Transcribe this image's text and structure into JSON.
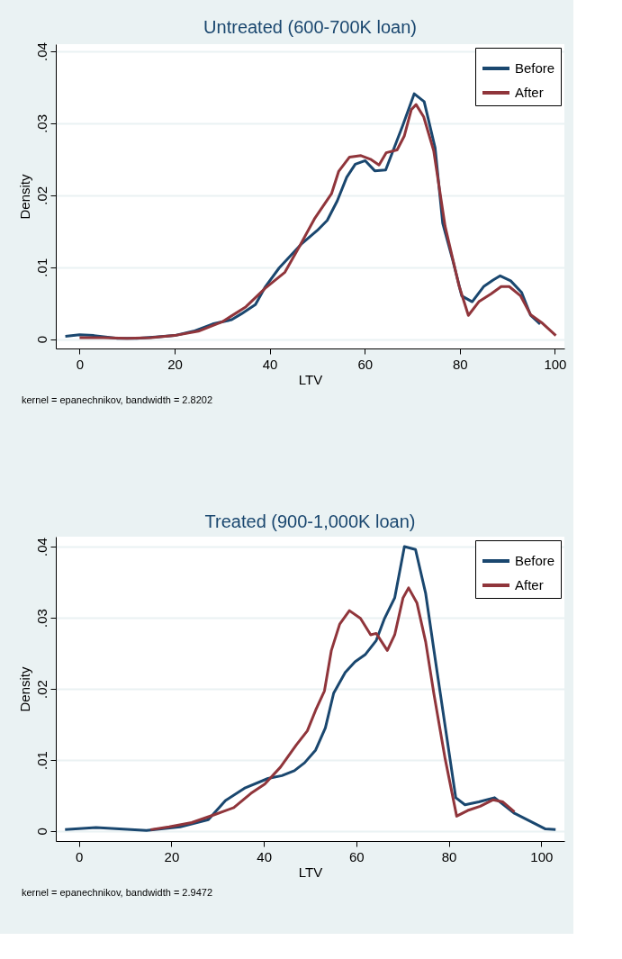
{
  "chart_data": [
    {
      "type": "line",
      "title": "Untreated (600-700K loan)",
      "xlabel": "LTV",
      "ylabel": "Density",
      "xlim": [
        -5,
        102
      ],
      "xticks": [
        0,
        20,
        40,
        60,
        80,
        100
      ],
      "ylim": [
        -0.0013,
        0.041
      ],
      "yticks": [
        {
          "value": 0,
          "label": "0"
        },
        {
          "value": 0.01,
          "label": ".01"
        },
        {
          "value": 0.02,
          "label": ".02"
        },
        {
          "value": 0.03,
          "label": ".03"
        },
        {
          "value": 0.04,
          "label": ".04"
        }
      ],
      "grid": "y",
      "legend": "top right",
      "marker": "none",
      "line_style": "solid",
      "annotations": [
        "kernel = epanechnikov, bandwidth = 2.8202"
      ],
      "series": [
        {
          "name": "Before",
          "color": "#1a476f",
          "x": [
            -3,
            0,
            3,
            8,
            12,
            16,
            20,
            24,
            28,
            32,
            34,
            37,
            39.1,
            42,
            46.8,
            50,
            52.1,
            54.2,
            56.2,
            58,
            60.1,
            62.1,
            64.4,
            68,
            70.4,
            72.5,
            74.8,
            76.4,
            78.5,
            80.4,
            82.6,
            85,
            87,
            88.5,
            90.7,
            93,
            94.9,
            96.9
          ],
          "values": [
            0.0004,
            0.0006,
            0.0005,
            0.0001,
            0.0001,
            0.0003,
            0.0005,
            0.0011,
            0.0021,
            0.0027,
            0.0035,
            0.0048,
            0.0073,
            0.0099,
            0.0133,
            0.0151,
            0.0165,
            0.0192,
            0.0225,
            0.0243,
            0.0248,
            0.0234,
            0.0235,
            0.0297,
            0.0341,
            0.033,
            0.0266,
            0.0161,
            0.011,
            0.006,
            0.0052,
            0.0073,
            0.0082,
            0.0088,
            0.0081,
            0.0065,
            0.0033,
            0.0021
          ]
        },
        {
          "name": "After",
          "color": "#90353b",
          "x": [
            0,
            5,
            10,
            15,
            20,
            25,
            30,
            35,
            39.1,
            43.2,
            46.2,
            49.4,
            53,
            54.5,
            56.8,
            59.2,
            61.2,
            63,
            64.5,
            66.8,
            68.3,
            69.8,
            70.8,
            72.4,
            74.5,
            76.9,
            79.8,
            81.8,
            84,
            86.6,
            88.7,
            90.4,
            92.8,
            94.9,
            97.2,
            100.2
          ],
          "values": [
            0.0002,
            0.0002,
            0.0001,
            0.0002,
            0.0005,
            0.0011,
            0.0024,
            0.0045,
            0.0071,
            0.0093,
            0.0128,
            0.0167,
            0.0202,
            0.0233,
            0.0253,
            0.0255,
            0.025,
            0.0242,
            0.0259,
            0.0263,
            0.0282,
            0.0319,
            0.0326,
            0.0309,
            0.0262,
            0.0157,
            0.0075,
            0.0033,
            0.0052,
            0.0063,
            0.0073,
            0.0073,
            0.006,
            0.0034,
            0.0023,
            0.0005
          ]
        }
      ]
    },
    {
      "type": "line",
      "title": "Treated (900-1,000K loan)",
      "xlabel": "LTV",
      "ylabel": "Density",
      "xlim": [
        -5,
        105
      ],
      "xticks": [
        0,
        20,
        40,
        60,
        80,
        100
      ],
      "ylim": [
        -0.0014,
        0.0414
      ],
      "yticks": [
        {
          "value": 0,
          "label": "0"
        },
        {
          "value": 0.01,
          "label": ".01"
        },
        {
          "value": 0.02,
          "label": ".02"
        },
        {
          "value": 0.03,
          "label": ".03"
        },
        {
          "value": 0.04,
          "label": ".04"
        }
      ],
      "grid": "y",
      "legend": "top right",
      "marker": "none",
      "line_style": "solid",
      "annotations": [
        "kernel = epanechnikov, bandwidth = 2.9472"
      ],
      "series": [
        {
          "name": "Before",
          "color": "#1a476f",
          "x": [
            -3,
            3.7,
            14.6,
            21.9,
            28,
            31.7,
            36,
            40.9,
            43.9,
            46.6,
            48.8,
            51.2,
            53.3,
            55.1,
            57.6,
            59.7,
            61.9,
            64.3,
            66.1,
            68.3,
            70.4,
            72.8,
            75,
            77.4,
            81.5,
            83.5,
            86.5,
            89.9,
            94.2,
            100.9,
            103.1
          ],
          "values": [
            0.0002,
            0.0005,
            0.0001,
            0.0006,
            0.0016,
            0.0043,
            0.0061,
            0.0074,
            0.0078,
            0.0085,
            0.0096,
            0.0114,
            0.0145,
            0.0194,
            0.0223,
            0.0238,
            0.0248,
            0.0268,
            0.0299,
            0.0328,
            0.04,
            0.0396,
            0.0334,
            0.0227,
            0.0047,
            0.0037,
            0.0041,
            0.0047,
            0.0025,
            0.0003,
            0.0002
          ]
        },
        {
          "name": "After",
          "color": "#90353b",
          "x": [
            15.5,
            19.5,
            24.4,
            29.3,
            33.5,
            37.2,
            40.2,
            43.6,
            47,
            49.4,
            51.2,
            53.1,
            54.6,
            56.4,
            58.5,
            60.9,
            63.1,
            64.3,
            66.7,
            68.3,
            70.1,
            71.3,
            73.1,
            75,
            76.8,
            79.2,
            81.7,
            84.1,
            86.8,
            89.6,
            91.7,
            94.2
          ],
          "values": [
            0.0002,
            0.0006,
            0.0012,
            0.0023,
            0.0033,
            0.0053,
            0.0066,
            0.009,
            0.0121,
            0.0141,
            0.017,
            0.0197,
            0.0254,
            0.0291,
            0.031,
            0.0299,
            0.0276,
            0.0278,
            0.0254,
            0.0276,
            0.0328,
            0.0342,
            0.0321,
            0.0266,
            0.0192,
            0.0102,
            0.0021,
            0.0029,
            0.0035,
            0.0044,
            0.0041,
            0.0027
          ]
        }
      ]
    }
  ]
}
